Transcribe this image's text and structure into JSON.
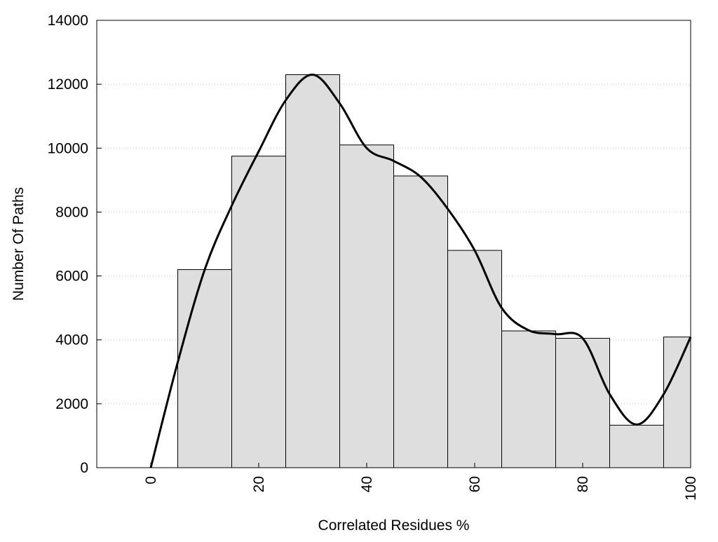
{
  "chart_data": {
    "type": "bar",
    "xlabel": "Correlated Residues %",
    "ylabel": "Number Of Paths",
    "xlim": [
      -10,
      100
    ],
    "ylim": [
      0,
      14000
    ],
    "x_ticks": [
      0,
      20,
      40,
      60,
      80,
      100
    ],
    "y_ticks": [
      0,
      2000,
      4000,
      6000,
      8000,
      10000,
      12000,
      14000
    ],
    "grid": "horizontal dotted",
    "bins": [
      {
        "from": 5,
        "to": 15,
        "value": 6200
      },
      {
        "from": 15,
        "to": 25,
        "value": 9750
      },
      {
        "from": 25,
        "to": 35,
        "value": 12300
      },
      {
        "from": 35,
        "to": 45,
        "value": 10100
      },
      {
        "from": 45,
        "to": 55,
        "value": 9130
      },
      {
        "from": 55,
        "to": 65,
        "value": 6800
      },
      {
        "from": 65,
        "to": 75,
        "value": 4280
      },
      {
        "from": 75,
        "to": 85,
        "value": 4050
      },
      {
        "from": 85,
        "to": 95,
        "value": 1330
      },
      {
        "from": 95,
        "to": 100,
        "value": 4090
      }
    ],
    "curve": {
      "x": [
        0,
        5,
        10,
        15,
        20,
        25,
        30,
        35,
        40,
        45,
        50,
        55,
        60,
        65,
        70,
        75,
        80,
        85,
        90,
        95,
        100
      ],
      "y": [
        0,
        3300,
        6200,
        8200,
        9900,
        11500,
        12300,
        11400,
        10000,
        9600,
        9100,
        8100,
        6800,
        5000,
        4300,
        4180,
        4050,
        2300,
        1350,
        2300,
        4090
      ]
    },
    "colors": {
      "bar_fill": "#dedede",
      "bar_stroke": "#000000",
      "curve": "#000000",
      "grid": "#c8c8c8"
    }
  }
}
